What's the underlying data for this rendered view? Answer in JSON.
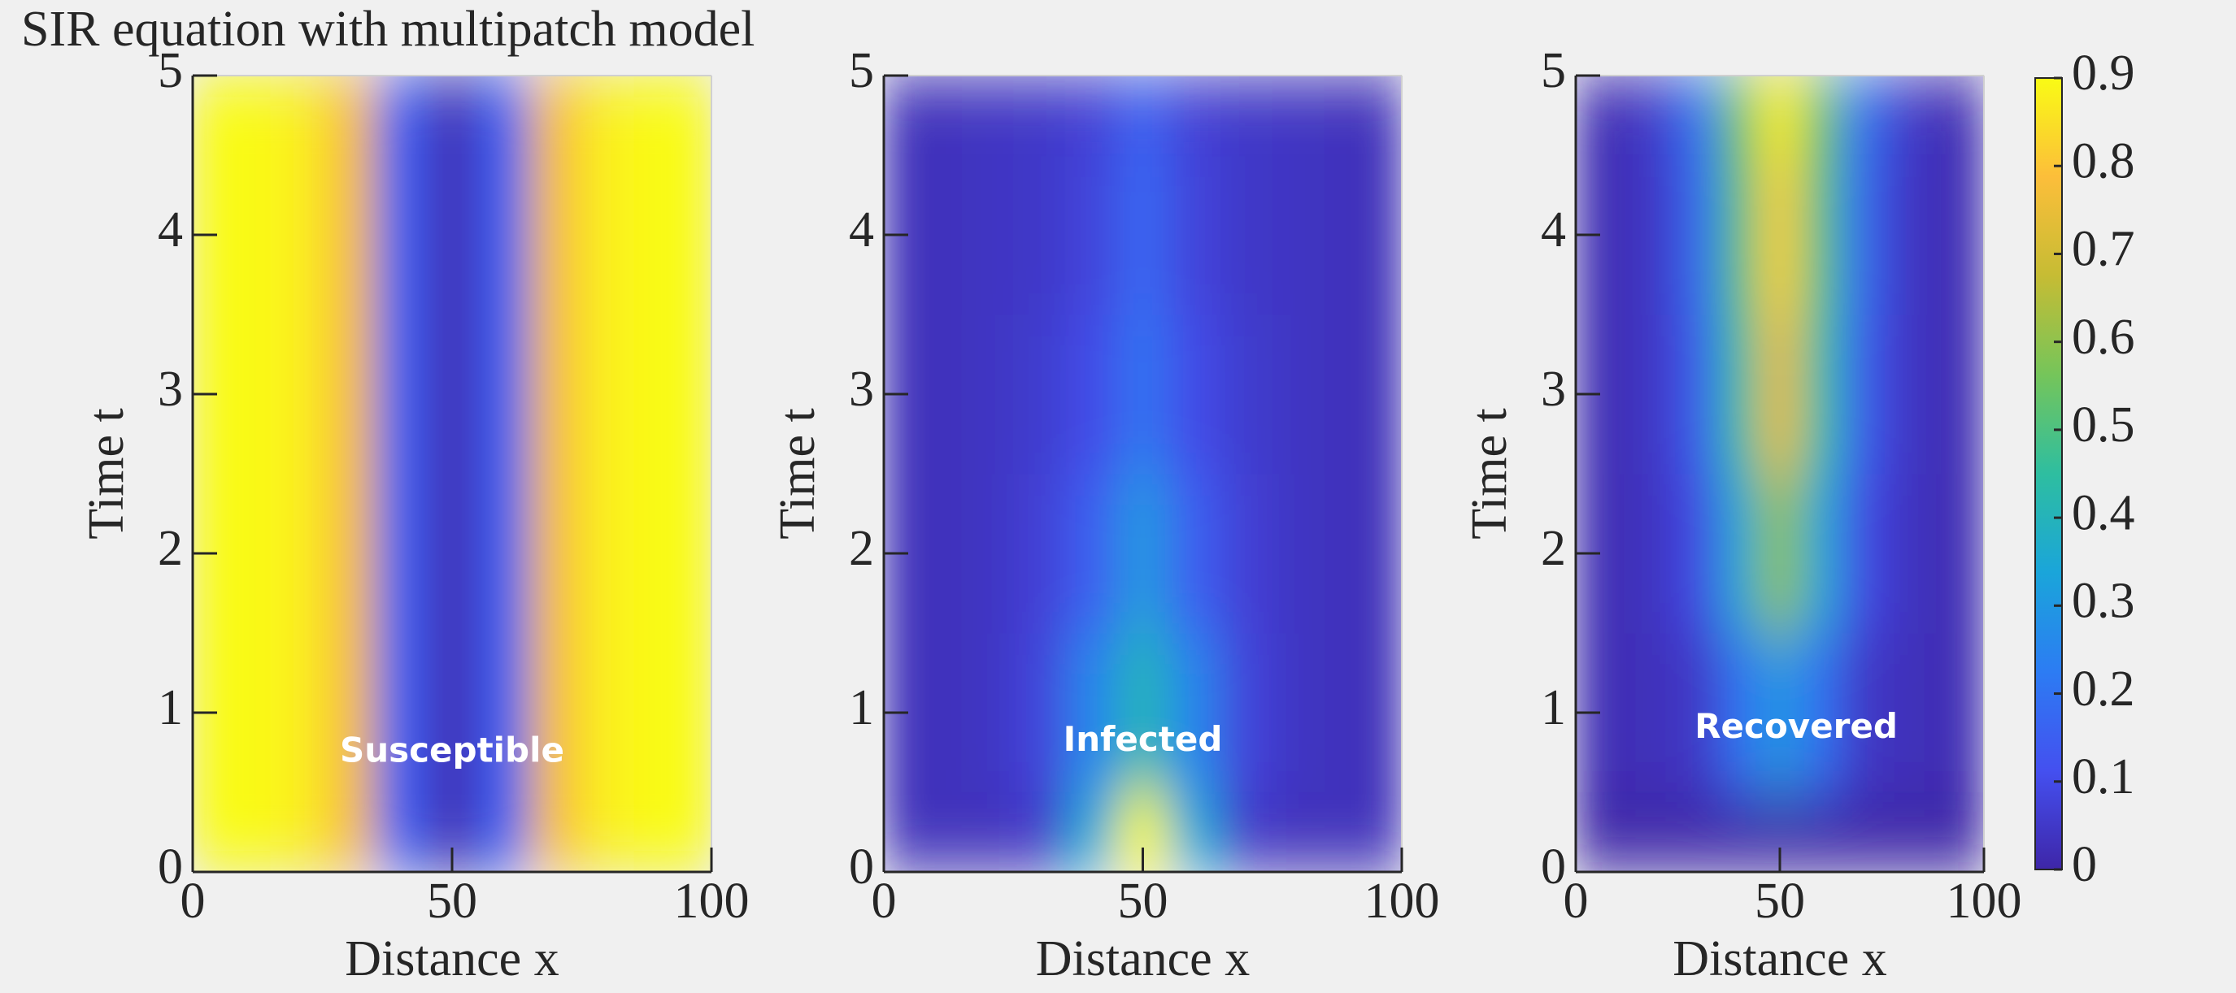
{
  "chart_data": [
    {
      "type": "heatmap",
      "title": "SIR equation with multipatch model",
      "annotation": "Susceptible",
      "xlabel": "Distance x",
      "ylabel": "Time t",
      "xlim": [
        0,
        100
      ],
      "ylim": [
        0,
        5
      ],
      "xticks": [
        0,
        50,
        100
      ],
      "yticks": [
        0,
        1,
        2,
        3,
        4,
        5
      ],
      "x": [
        0,
        10,
        20,
        30,
        40,
        50,
        60,
        70,
        80,
        90,
        100
      ],
      "y": [
        0,
        1,
        2,
        3,
        4,
        5
      ],
      "z": [
        [
          0.9,
          0.9,
          0.88,
          0.78,
          0.15,
          0.02,
          0.15,
          0.78,
          0.88,
          0.9,
          0.9
        ],
        [
          0.9,
          0.9,
          0.88,
          0.78,
          0.15,
          0.02,
          0.15,
          0.78,
          0.88,
          0.9,
          0.9
        ],
        [
          0.9,
          0.9,
          0.88,
          0.78,
          0.15,
          0.02,
          0.15,
          0.78,
          0.88,
          0.9,
          0.9
        ],
        [
          0.9,
          0.9,
          0.88,
          0.78,
          0.15,
          0.02,
          0.15,
          0.78,
          0.88,
          0.9,
          0.9
        ],
        [
          0.9,
          0.9,
          0.88,
          0.78,
          0.15,
          0.02,
          0.15,
          0.78,
          0.88,
          0.9,
          0.9
        ],
        [
          0.9,
          0.9,
          0.88,
          0.78,
          0.15,
          0.02,
          0.15,
          0.78,
          0.88,
          0.9,
          0.9
        ]
      ]
    },
    {
      "type": "heatmap",
      "annotation": "Infected",
      "xlabel": "Distance x",
      "ylabel": "Time t",
      "xlim": [
        0,
        100
      ],
      "ylim": [
        0,
        5
      ],
      "xticks": [
        0,
        50,
        100
      ],
      "yticks": [
        0,
        1,
        2,
        3,
        4,
        5
      ],
      "x": [
        0,
        10,
        20,
        30,
        40,
        50,
        60,
        70,
        80,
        90,
        100
      ],
      "y": [
        0,
        1,
        2,
        3,
        4,
        5
      ],
      "z": [
        [
          0.03,
          0.03,
          0.03,
          0.05,
          0.35,
          0.9,
          0.35,
          0.05,
          0.03,
          0.03,
          0.03
        ],
        [
          0.03,
          0.03,
          0.04,
          0.08,
          0.25,
          0.4,
          0.25,
          0.08,
          0.04,
          0.03,
          0.03
        ],
        [
          0.03,
          0.03,
          0.04,
          0.07,
          0.15,
          0.3,
          0.15,
          0.07,
          0.04,
          0.03,
          0.03
        ],
        [
          0.03,
          0.03,
          0.04,
          0.06,
          0.1,
          0.2,
          0.1,
          0.06,
          0.04,
          0.03,
          0.03
        ],
        [
          0.03,
          0.03,
          0.04,
          0.05,
          0.08,
          0.17,
          0.08,
          0.05,
          0.04,
          0.03,
          0.03
        ],
        [
          0.03,
          0.03,
          0.04,
          0.05,
          0.07,
          0.15,
          0.07,
          0.05,
          0.04,
          0.03,
          0.03
        ]
      ]
    },
    {
      "type": "heatmap",
      "annotation": "Recovered",
      "xlabel": "Distance x",
      "ylabel": "Time t",
      "xlim": [
        0,
        100
      ],
      "ylim": [
        0,
        5
      ],
      "xticks": [
        0,
        50,
        100
      ],
      "yticks": [
        0,
        1,
        2,
        3,
        4,
        5
      ],
      "x": [
        0,
        10,
        20,
        30,
        40,
        50,
        60,
        70,
        80,
        90,
        100
      ],
      "y": [
        0,
        1,
        2,
        3,
        4,
        5
      ],
      "z": [
        [
          0.0,
          0.0,
          0.0,
          0.0,
          0.0,
          0.0,
          0.0,
          0.0,
          0.0,
          0.0,
          0.0
        ],
        [
          0.02,
          0.02,
          0.03,
          0.05,
          0.2,
          0.3,
          0.2,
          0.05,
          0.03,
          0.02,
          0.02
        ],
        [
          0.02,
          0.02,
          0.04,
          0.1,
          0.35,
          0.6,
          0.35,
          0.1,
          0.04,
          0.02,
          0.02
        ],
        [
          0.02,
          0.02,
          0.05,
          0.15,
          0.45,
          0.75,
          0.45,
          0.15,
          0.05,
          0.02,
          0.02
        ],
        [
          0.02,
          0.02,
          0.05,
          0.18,
          0.5,
          0.82,
          0.5,
          0.18,
          0.05,
          0.02,
          0.02
        ],
        [
          0.02,
          0.02,
          0.06,
          0.2,
          0.55,
          0.88,
          0.55,
          0.2,
          0.06,
          0.02,
          0.02
        ]
      ],
      "colorbar": {
        "clim": [
          0,
          0.9
        ],
        "ticks": [
          0,
          0.1,
          0.2,
          0.3,
          0.4,
          0.5,
          0.6,
          0.7,
          0.8,
          0.9
        ],
        "colormap": [
          "#3e26a8",
          "#4450f0",
          "#2c7cf3",
          "#1aa5da",
          "#2ebea0",
          "#75c55a",
          "#c6bc34",
          "#fcbe3a",
          "#f9fb15"
        ]
      }
    }
  ]
}
